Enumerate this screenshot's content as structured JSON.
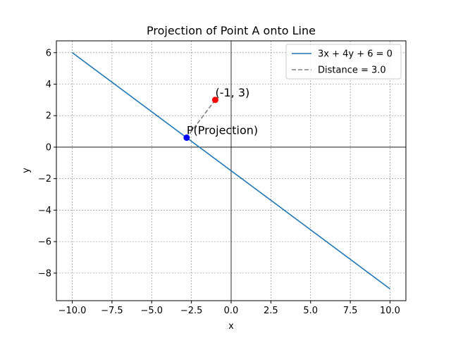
{
  "chart_data": {
    "type": "line",
    "title": "Projection of Point A onto Line",
    "xlabel": "x",
    "ylabel": "y",
    "xlim": [
      -11.0,
      11.0
    ],
    "ylim": [
      -9.75,
      6.75
    ],
    "grid": true,
    "axes_lines_at_zero": true,
    "xticks": [
      -10.0,
      -7.5,
      -5.0,
      -2.5,
      0.0,
      2.5,
      5.0,
      7.5,
      10.0
    ],
    "xtick_labels": [
      "−10.0",
      "−7.5",
      "−5.0",
      "−2.5",
      "0.0",
      "2.5",
      "5.0",
      "7.5",
      "10.0"
    ],
    "yticks": [
      -8,
      -6,
      -4,
      -2,
      0,
      2,
      4,
      6
    ],
    "ytick_labels": [
      "−8",
      "−6",
      "−4",
      "−2",
      "0",
      "2",
      "4",
      "6"
    ],
    "legend_position": "top-right",
    "series": [
      {
        "name": "3x + 4y + 6 = 0",
        "kind": "line",
        "color": "#1f77b4",
        "x": [
          -10,
          10
        ],
        "y": [
          6,
          -9
        ]
      },
      {
        "name": "Distance = 3.0",
        "kind": "dashed-line",
        "color": "#808080",
        "x": [
          -1,
          -2.8
        ],
        "y": [
          3,
          0.6
        ]
      }
    ],
    "points": [
      {
        "label": "(-1, 3)",
        "x": -1,
        "y": 3,
        "color": "#ff0000"
      },
      {
        "label": "P(Projection)",
        "x": -2.8,
        "y": 0.6,
        "color": "#0000ff"
      }
    ]
  }
}
